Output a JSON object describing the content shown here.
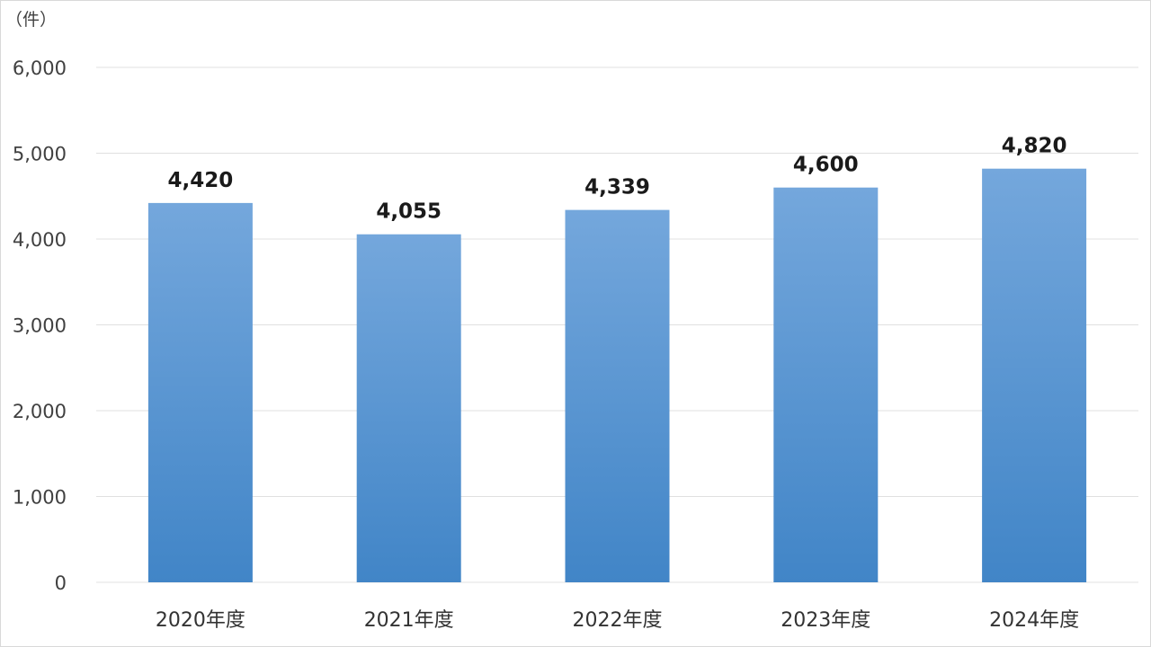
{
  "chart_data": {
    "type": "bar",
    "unit_label": "（件）",
    "categories": [
      "2020年度",
      "2021年度",
      "2022年度",
      "2023年度",
      "2024年度"
    ],
    "values": [
      4420,
      4055,
      4339,
      4600,
      4820
    ],
    "value_labels": [
      "4,420",
      "4,055",
      "4,339",
      "4,600",
      "4,820"
    ],
    "ylim": [
      0,
      6000
    ],
    "yticks": [
      0,
      1000,
      2000,
      3000,
      4000,
      5000,
      6000
    ],
    "ytick_labels": [
      "0",
      "1,000",
      "2,000",
      "3,000",
      "4,000",
      "5,000",
      "6,000"
    ],
    "grid": true,
    "legend": "none",
    "colors": {
      "bar_top": "#74a7dc",
      "bar_bottom": "#4185c7",
      "grid": "#e0e0e0"
    }
  }
}
